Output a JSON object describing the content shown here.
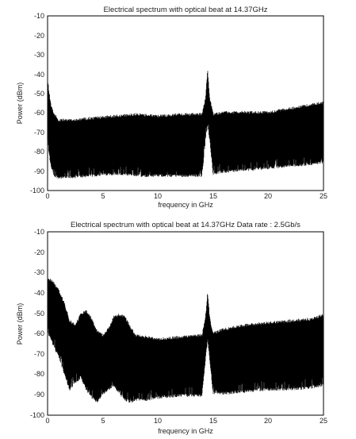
{
  "chart_data": [
    {
      "type": "area",
      "title": "Electrical spectrum with optical beat at 14.37GHz",
      "xlabel": "frequency in GHz",
      "ylabel": "Power (dBm)",
      "xlim": [
        0,
        25
      ],
      "ylim": [
        -100,
        -10
      ],
      "xticks": [
        "0",
        "5",
        "10",
        "15",
        "20",
        "25"
      ],
      "yticks": [
        "-10",
        "-20",
        "-30",
        "-40",
        "-50",
        "-60",
        "-70",
        "-80",
        "-90",
        "-100"
      ],
      "grid": false,
      "colors": {
        "trace": "#000000",
        "axes": "#000000"
      },
      "series": [
        {
          "x": [
            0,
            0.1,
            0.3,
            0.6,
            1,
            2,
            4,
            6,
            8,
            10,
            12,
            14,
            14.3,
            14.5,
            14.7,
            15,
            16,
            18,
            20,
            22,
            24,
            25
          ],
          "y_max": [
            -41,
            -47,
            -55,
            -60,
            -63,
            -63,
            -62,
            -61,
            -60,
            -61,
            -60,
            -60,
            -52,
            -37,
            -52,
            -60,
            -59,
            -59,
            -59,
            -57,
            -55,
            -54
          ],
          "y_min": [
            -72,
            -80,
            -88,
            -93,
            -94,
            -94,
            -93,
            -92,
            -93,
            -93,
            -93,
            -93,
            -75,
            -67,
            -75,
            -92,
            -91,
            -90,
            -89,
            -88,
            -87,
            -86
          ]
        }
      ]
    },
    {
      "type": "area",
      "title": "Electrical spectrum with optical beat at 14.37GHz  Data rate : 2.5Gb/s",
      "xlabel": "frequency in GHz",
      "ylabel": "Power (dBm)",
      "xlim": [
        0,
        25
      ],
      "ylim": [
        -100,
        -10
      ],
      "xticks": [
        "0",
        "5",
        "10",
        "15",
        "20",
        "25"
      ],
      "yticks": [
        "-10",
        "-20",
        "-30",
        "-40",
        "-50",
        "-60",
        "-70",
        "-80",
        "-90",
        "-100"
      ],
      "grid": false,
      "colors": {
        "trace": "#000000",
        "axes": "#000000"
      },
      "series": [
        {
          "x": [
            0,
            0.5,
            1,
            1.5,
            2,
            2.5,
            3,
            3.5,
            4,
            4.5,
            5,
            5.5,
            6,
            6.5,
            7,
            7.5,
            8,
            9,
            10,
            12,
            14,
            14.3,
            14.5,
            14.7,
            15,
            16,
            18,
            20,
            22,
            24,
            25
          ],
          "y_max": [
            -32,
            -34,
            -38,
            -44,
            -53,
            -55,
            -50,
            -48,
            -52,
            -58,
            -60,
            -57,
            -51,
            -50,
            -51,
            -56,
            -60,
            -61,
            -62,
            -61,
            -60,
            -52,
            -39,
            -52,
            -59,
            -57,
            -55,
            -54,
            -53,
            -52,
            -50
          ],
          "y_min": [
            -60,
            -66,
            -72,
            -80,
            -88,
            -85,
            -82,
            -88,
            -92,
            -94,
            -90,
            -88,
            -86,
            -90,
            -93,
            -94,
            -93,
            -93,
            -92,
            -91,
            -91,
            -74,
            -64,
            -74,
            -90,
            -90,
            -89,
            -88,
            -88,
            -87,
            -86
          ]
        }
      ]
    }
  ]
}
